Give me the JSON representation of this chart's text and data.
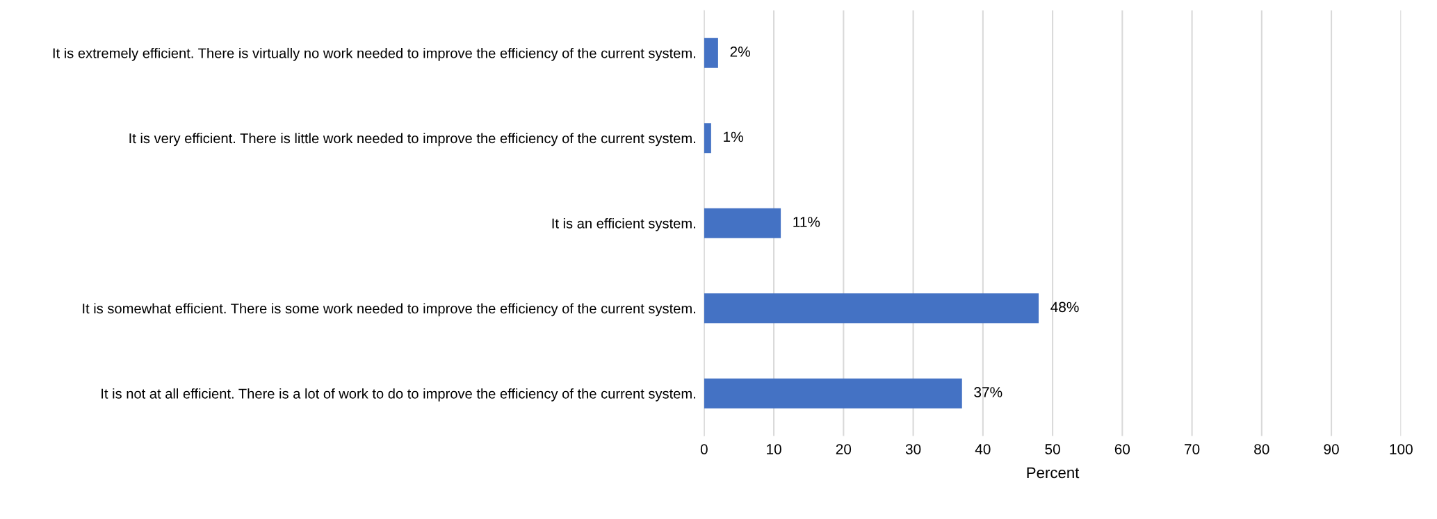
{
  "chart_data": {
    "type": "bar",
    "orientation": "horizontal",
    "xlabel": "Percent",
    "categories": [
      "It is extremely efficient. There is virtually no work needed to improve the efficiency of the current system.",
      "It is very efficient. There is little work needed to improve the efficiency of the current system.",
      "It is an efficient system.",
      "It is somewhat efficient. There is some work needed to improve the efficiency of the current system.",
      "It is not at all efficient. There is a lot of work to do to improve the efficiency of the current system."
    ],
    "values": [
      2,
      1,
      11,
      48,
      37
    ],
    "value_labels": [
      "2%",
      "1%",
      "11%",
      "48%",
      "37%"
    ],
    "color": "#4472c4",
    "xlim": [
      0,
      100
    ],
    "xticks": [
      0,
      10,
      20,
      30,
      40,
      50,
      60,
      70,
      80,
      90,
      100
    ],
    "grid": "x"
  }
}
